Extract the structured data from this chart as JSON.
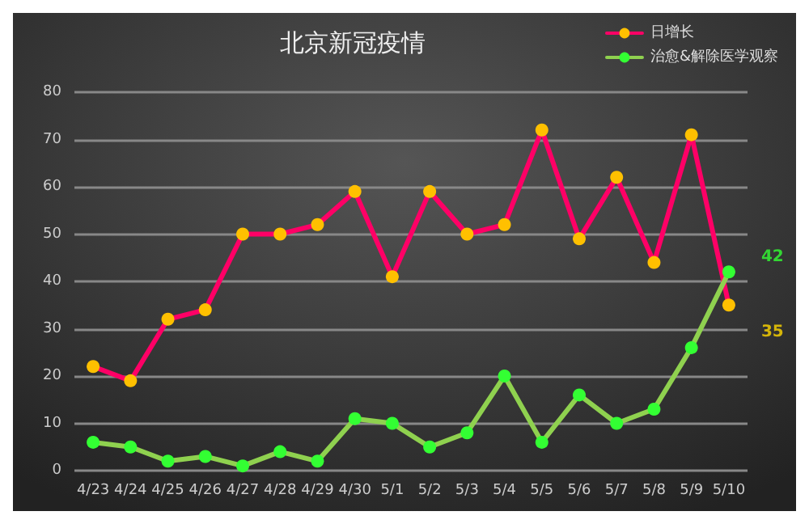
{
  "chart_data": {
    "type": "line",
    "title": "北京新冠疫情",
    "categories": [
      "4/23",
      "4/24",
      "4/25",
      "4/26",
      "4/27",
      "4/28",
      "4/29",
      "4/30",
      "5/1",
      "5/2",
      "5/3",
      "5/4",
      "5/5",
      "5/6",
      "5/7",
      "5/8",
      "5/9",
      "5/10"
    ],
    "series": [
      {
        "name": "日增长",
        "color": "#ff0066",
        "values": [
          22,
          19,
          32,
          34,
          50,
          50,
          52,
          59,
          41,
          59,
          50,
          52,
          72,
          49,
          62,
          44,
          71,
          35
        ]
      },
      {
        "name": "治愈&解除医学观察",
        "color": "#8fd14f",
        "values": [
          6,
          5,
          2,
          3,
          1,
          4,
          2,
          11,
          10,
          5,
          8,
          20,
          6,
          16,
          10,
          13,
          26,
          42
        ]
      }
    ],
    "ylim": [
      0,
      80
    ],
    "yticks": [
      0,
      10,
      20,
      30,
      40,
      50,
      60,
      70,
      80
    ],
    "grid": "y",
    "legend": "top right",
    "marker": "circle",
    "annotations": [
      {
        "text": "42",
        "x": "5/10",
        "y": 42
      },
      {
        "text": "35",
        "x": "5/10",
        "y": 35
      }
    ]
  }
}
